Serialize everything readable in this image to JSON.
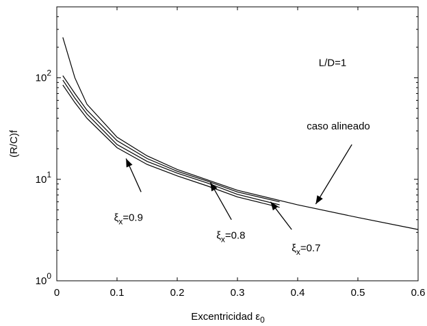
{
  "chart_data": {
    "type": "line",
    "xlabel": "Excentricidad ε",
    "xlabel_subscript": "0",
    "ylabel": "(R/C)f",
    "xlim": [
      0,
      0.6
    ],
    "ylim": [
      1,
      500
    ],
    "yscale": "log",
    "grid": false,
    "x_ticks": [
      "0",
      "0.1",
      "0.2",
      "0.3",
      "0.4",
      "0.5",
      "0.6"
    ],
    "y_ticks": [
      {
        "base": "10",
        "exp": "0"
      },
      {
        "base": "10",
        "exp": "1"
      },
      {
        "base": "10",
        "exp": "2"
      }
    ],
    "series": [
      {
        "label": "caso alineado",
        "x": [
          0.01,
          0.03,
          0.05,
          0.1,
          0.15,
          0.2,
          0.3,
          0.4,
          0.5,
          0.6
        ],
        "y": [
          250,
          100,
          55,
          26,
          17,
          12.5,
          7.8,
          5.6,
          4.2,
          3.2
        ]
      },
      {
        "label": "ξx=0.7",
        "x": [
          0.01,
          0.03,
          0.05,
          0.1,
          0.15,
          0.2,
          0.25,
          0.3,
          0.37
        ],
        "y": [
          105,
          70,
          48,
          24,
          16,
          12,
          9.6,
          7.5,
          6.0
        ]
      },
      {
        "label": "ξx=0.8",
        "x": [
          0.01,
          0.03,
          0.05,
          0.1,
          0.15,
          0.2,
          0.25,
          0.3,
          0.37
        ],
        "y": [
          95,
          63,
          44,
          22,
          15,
          11.5,
          9.2,
          7.1,
          5.6
        ]
      },
      {
        "label": "ξx=0.9",
        "x": [
          0.01,
          0.03,
          0.05,
          0.1,
          0.15,
          0.2,
          0.25,
          0.3,
          0.37
        ],
        "y": [
          85,
          57,
          40,
          20.5,
          14,
          10.8,
          8.6,
          6.7,
          5.3
        ]
      }
    ],
    "annotations": [
      {
        "text": "L/D=1",
        "x": 0.435,
        "y": 130
      },
      {
        "text": "caso alineado",
        "text_x": 0.415,
        "text_y": 31,
        "arrow_from": [
          0.49,
          22
        ],
        "arrow_to": [
          0.43,
          5.7
        ]
      },
      {
        "text": "ξ",
        "sub": "x",
        "suffix": "=0.9",
        "text_x": 0.095,
        "text_y": 3.9,
        "arrow_from": [
          0.14,
          7.5
        ],
        "arrow_to": [
          0.115,
          16
        ]
      },
      {
        "text": "ξ",
        "sub": "x",
        "suffix": "=0.8",
        "text_x": 0.265,
        "text_y": 2.6,
        "arrow_from": [
          0.29,
          4.0
        ],
        "arrow_to": [
          0.255,
          9.3
        ]
      },
      {
        "text": "ξ",
        "sub": "x",
        "suffix": "=0.7",
        "text_x": 0.39,
        "text_y": 1.95,
        "arrow_from": [
          0.39,
          3.2
        ],
        "arrow_to": [
          0.355,
          6.0
        ]
      }
    ]
  }
}
